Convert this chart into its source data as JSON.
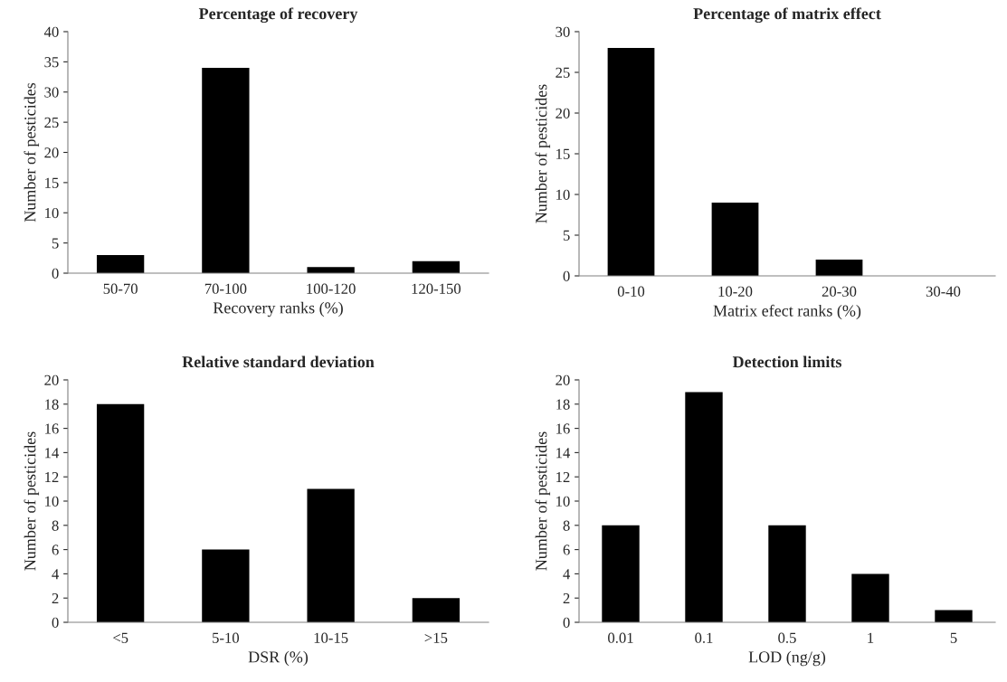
{
  "chart_data": [
    {
      "type": "bar",
      "title": "Percentage of recovery",
      "xlabel": "Recovery ranks (%)",
      "ylabel": "Number of pesticides",
      "categories": [
        "50-70",
        "70-100",
        "100-120",
        "120-150"
      ],
      "values": [
        3,
        34,
        1,
        2
      ],
      "color": "#000000",
      "ylim": [
        0,
        40
      ],
      "yticks": [
        0,
        5,
        10,
        15,
        20,
        25,
        30,
        35,
        40
      ]
    },
    {
      "type": "bar",
      "title": "Percentage of matrix effect",
      "xlabel": "Matrix efect ranks (%)",
      "ylabel": "Number of pesticides",
      "categories": [
        "0-10",
        "10-20",
        "20-30",
        "30-40"
      ],
      "values": [
        28,
        9,
        2,
        0
      ],
      "color": "#000000",
      "ylim": [
        0,
        30
      ],
      "yticks": [
        0,
        5,
        10,
        15,
        20,
        25,
        30
      ]
    },
    {
      "type": "bar",
      "title": "Relative standard deviation",
      "xlabel": "DSR (%)",
      "ylabel": "Number of pesticides",
      "categories": [
        "<5",
        "5-10",
        "10-15",
        ">15"
      ],
      "values": [
        18,
        6,
        11,
        2
      ],
      "color": "#000000",
      "ylim": [
        0,
        20
      ],
      "yticks": [
        0,
        2,
        4,
        6,
        8,
        10,
        12,
        14,
        16,
        18,
        20
      ]
    },
    {
      "type": "bar",
      "title": "Detection limits",
      "xlabel": "LOD (ng/g)",
      "ylabel": "Number of pesticides",
      "categories": [
        "0.01",
        "0.1",
        "0.5",
        "1",
        "5"
      ],
      "values": [
        8,
        19,
        8,
        4,
        1
      ],
      "color": "#000000",
      "ylim": [
        0,
        20
      ],
      "yticks": [
        0,
        2,
        4,
        6,
        8,
        10,
        12,
        14,
        16,
        18,
        20
      ]
    }
  ]
}
